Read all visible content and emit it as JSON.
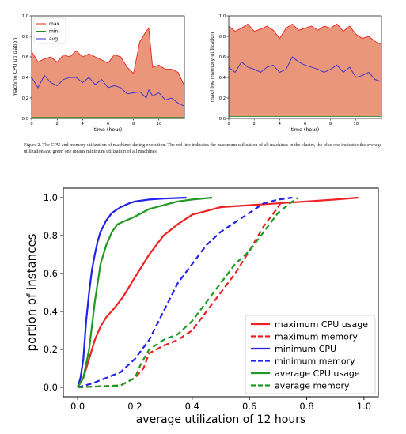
{
  "caption": {
    "text": "Figure 2.   The CPU and memory utilization of machines during execution. The red line indicates the maximum utilization of all machines in the cluster, the blue one indicates the average utilization and green one means minimum utilization of all machines."
  },
  "colors": {
    "max": "#e8201a",
    "min": "#2a8a2a",
    "avg": "#2f2fd0",
    "fill": "#e9967a",
    "red": "#ee2222",
    "blue": "#2222ee",
    "green": "#229922"
  },
  "chart_data": [
    {
      "type": "area",
      "xlabel": "time (hour)",
      "ylabel": "machine CPU utilization",
      "xlim": [
        0,
        12
      ],
      "ylim": [
        0,
        1
      ],
      "xticks": [
        0,
        2,
        4,
        6,
        8,
        10
      ],
      "yticks": [
        0.0,
        0.2,
        0.4,
        0.6,
        0.8,
        1.0
      ],
      "legend_position": "upper-left",
      "x": [
        0,
        0.5,
        1,
        1.5,
        2,
        2.5,
        3,
        3.5,
        4,
        4.5,
        5,
        5.5,
        6,
        6.5,
        7,
        7.5,
        8,
        8.5,
        9,
        9.2,
        9.5,
        10,
        10.5,
        11,
        11.5,
        12
      ],
      "series": [
        {
          "name": "max",
          "values": [
            0.65,
            0.55,
            0.58,
            0.6,
            0.55,
            0.62,
            0.6,
            0.66,
            0.6,
            0.63,
            0.6,
            0.57,
            0.54,
            0.62,
            0.6,
            0.5,
            0.44,
            0.75,
            0.85,
            0.88,
            0.5,
            0.52,
            0.48,
            0.48,
            0.45,
            0.32
          ]
        },
        {
          "name": "min",
          "values": [
            0.01,
            0.01,
            0.01,
            0.01,
            0.01,
            0.01,
            0.01,
            0.01,
            0.01,
            0.01,
            0.01,
            0.01,
            0.01,
            0.01,
            0.01,
            0.01,
            0.01,
            0.01,
            0.01,
            0.01,
            0.01,
            0.01,
            0.01,
            0.01,
            0.01,
            0.01
          ]
        },
        {
          "name": "avg",
          "values": [
            0.4,
            0.3,
            0.42,
            0.35,
            0.32,
            0.38,
            0.4,
            0.4,
            0.35,
            0.4,
            0.33,
            0.38,
            0.3,
            0.32,
            0.3,
            0.24,
            0.25,
            0.26,
            0.2,
            0.28,
            0.22,
            0.25,
            0.18,
            0.2,
            0.15,
            0.12
          ]
        }
      ]
    },
    {
      "type": "area",
      "xlabel": "time (hour)",
      "ylabel": "machine memory utilization",
      "xlim": [
        0,
        12
      ],
      "ylim": [
        0,
        1
      ],
      "xticks": [
        0,
        2,
        4,
        6,
        8,
        10
      ],
      "yticks": [
        0.0,
        0.2,
        0.4,
        0.6,
        0.8,
        1.0
      ],
      "x": [
        0,
        0.5,
        1,
        1.5,
        2,
        2.5,
        3,
        3.5,
        4,
        4.5,
        5,
        5.5,
        6,
        6.5,
        7,
        7.5,
        8,
        8.5,
        9,
        9.5,
        10,
        10.5,
        11,
        11.5,
        12
      ],
      "series": [
        {
          "name": "max",
          "values": [
            0.9,
            0.85,
            0.88,
            0.92,
            0.85,
            0.87,
            0.9,
            0.86,
            0.78,
            0.88,
            0.92,
            0.86,
            0.88,
            0.9,
            0.86,
            0.9,
            0.88,
            0.92,
            0.85,
            0.9,
            0.82,
            0.78,
            0.8,
            0.75,
            0.72
          ]
        },
        {
          "name": "min",
          "values": [
            0.02,
            0.02,
            0.02,
            0.02,
            0.02,
            0.02,
            0.02,
            0.02,
            0.02,
            0.02,
            0.02,
            0.02,
            0.02,
            0.02,
            0.02,
            0.02,
            0.02,
            0.02,
            0.02,
            0.02,
            0.02,
            0.02,
            0.02,
            0.02,
            0.02
          ]
        },
        {
          "name": "avg",
          "values": [
            0.5,
            0.45,
            0.55,
            0.5,
            0.48,
            0.45,
            0.5,
            0.52,
            0.45,
            0.48,
            0.6,
            0.55,
            0.52,
            0.5,
            0.48,
            0.45,
            0.48,
            0.52,
            0.45,
            0.5,
            0.4,
            0.42,
            0.45,
            0.38,
            0.36
          ]
        }
      ]
    },
    {
      "type": "line",
      "xlabel": "average utilization of 12 hours",
      "ylabel": "portion of instances",
      "xlim": [
        -0.05,
        1.05
      ],
      "ylim": [
        -0.05,
        1.05
      ],
      "xticks": [
        0.0,
        0.2,
        0.4,
        0.6,
        0.8,
        1.0
      ],
      "yticks": [
        0.0,
        0.2,
        0.4,
        0.6,
        0.8,
        1.0
      ],
      "legend_position": "lower-right",
      "series": [
        {
          "name": "maximum CPU usage",
          "style": "solid",
          "color": "red",
          "x": [
            0.0,
            0.02,
            0.04,
            0.06,
            0.08,
            0.1,
            0.13,
            0.16,
            0.2,
            0.25,
            0.3,
            0.35,
            0.4,
            0.45,
            0.5,
            0.6,
            0.7,
            0.8,
            0.9,
            0.98
          ],
          "y": [
            0.0,
            0.05,
            0.15,
            0.25,
            0.32,
            0.37,
            0.42,
            0.48,
            0.58,
            0.7,
            0.8,
            0.86,
            0.91,
            0.93,
            0.95,
            0.96,
            0.97,
            0.98,
            0.99,
            1.0
          ]
        },
        {
          "name": "maximum memory",
          "style": "dashed",
          "color": "red",
          "x": [
            0.0,
            0.15,
            0.2,
            0.23,
            0.25,
            0.3,
            0.35,
            0.4,
            0.45,
            0.5,
            0.55,
            0.6,
            0.65,
            0.7,
            0.72
          ],
          "y": [
            0.0,
            0.01,
            0.05,
            0.1,
            0.18,
            0.22,
            0.25,
            0.3,
            0.4,
            0.5,
            0.6,
            0.72,
            0.85,
            0.95,
            1.0
          ]
        },
        {
          "name": "minimum CPU",
          "style": "solid",
          "color": "blue",
          "x": [
            0.0,
            0.01,
            0.02,
            0.03,
            0.04,
            0.05,
            0.06,
            0.07,
            0.08,
            0.1,
            0.12,
            0.15,
            0.18,
            0.2,
            0.25,
            0.3,
            0.38
          ],
          "y": [
            0.0,
            0.05,
            0.15,
            0.35,
            0.5,
            0.62,
            0.7,
            0.77,
            0.82,
            0.88,
            0.92,
            0.95,
            0.97,
            0.98,
            0.99,
            0.995,
            1.0
          ]
        },
        {
          "name": "minimum memory",
          "style": "dashed",
          "color": "blue",
          "x": [
            0.0,
            0.05,
            0.1,
            0.15,
            0.2,
            0.25,
            0.3,
            0.35,
            0.4,
            0.45,
            0.5,
            0.55,
            0.6,
            0.65,
            0.7,
            0.75
          ],
          "y": [
            0.0,
            0.02,
            0.05,
            0.08,
            0.15,
            0.25,
            0.4,
            0.55,
            0.65,
            0.75,
            0.82,
            0.87,
            0.92,
            0.97,
            0.99,
            1.0
          ]
        },
        {
          "name": "average CPU usage",
          "style": "solid",
          "color": "green",
          "x": [
            0.0,
            0.02,
            0.04,
            0.06,
            0.08,
            0.1,
            0.12,
            0.14,
            0.17,
            0.2,
            0.25,
            0.3,
            0.35,
            0.4,
            0.47
          ],
          "y": [
            0.0,
            0.05,
            0.2,
            0.45,
            0.65,
            0.75,
            0.82,
            0.86,
            0.88,
            0.9,
            0.94,
            0.96,
            0.98,
            0.99,
            1.0
          ]
        },
        {
          "name": "average memory",
          "style": "dashed",
          "color": "green",
          "x": [
            0.0,
            0.15,
            0.2,
            0.22,
            0.25,
            0.3,
            0.35,
            0.4,
            0.45,
            0.5,
            0.55,
            0.6,
            0.65,
            0.7,
            0.75,
            0.77
          ],
          "y": [
            0.0,
            0.01,
            0.05,
            0.12,
            0.2,
            0.25,
            0.28,
            0.35,
            0.45,
            0.55,
            0.65,
            0.72,
            0.82,
            0.92,
            0.98,
            1.0
          ]
        }
      ]
    }
  ]
}
